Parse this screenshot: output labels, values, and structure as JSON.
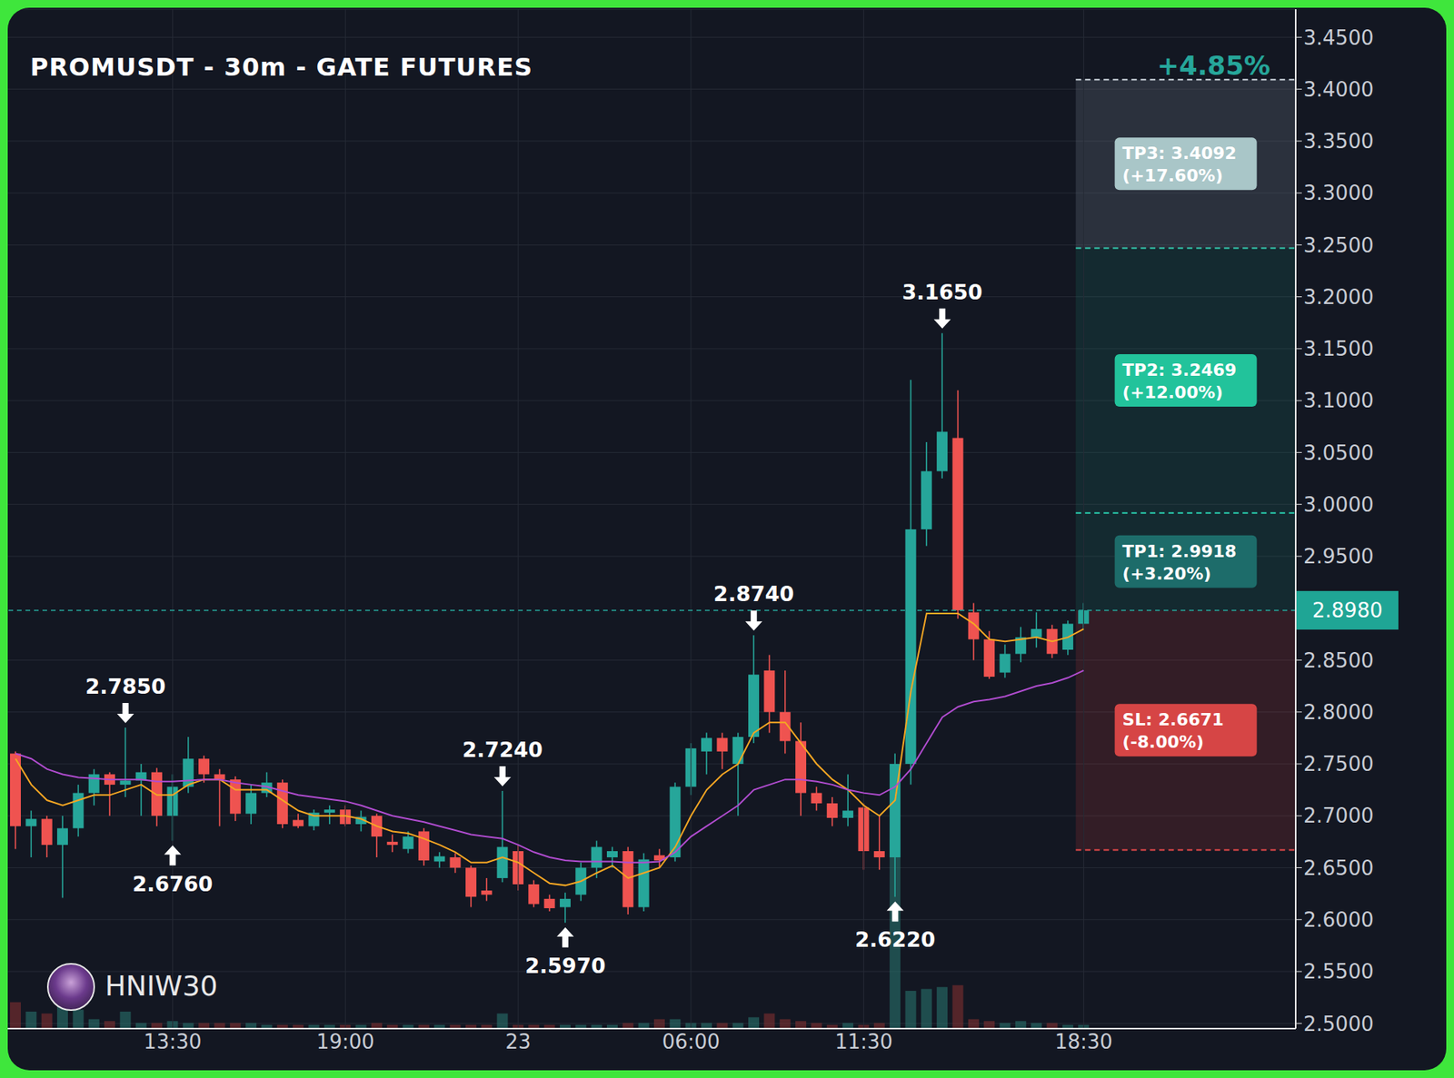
{
  "chart_data": {
    "type": "candlestick",
    "title": "PROMUSDT - 30m - GATE FUTURES",
    "watermark": "HNIW30",
    "categories": [
      null,
      null,
      null,
      null,
      null,
      null,
      null,
      null,
      null,
      null,
      "13:30",
      null,
      null,
      null,
      null,
      null,
      null,
      null,
      null,
      null,
      null,
      "19:00",
      null,
      null,
      null,
      null,
      null,
      null,
      null,
      null,
      null,
      null,
      "23",
      null,
      null,
      null,
      null,
      null,
      null,
      null,
      null,
      null,
      null,
      "06:00",
      null,
      null,
      null,
      null,
      null,
      null,
      null,
      null,
      null,
      null,
      "11:30",
      null,
      null,
      null,
      null,
      null,
      null,
      null,
      null,
      null,
      null,
      null,
      null,
      null,
      "18:30",
      null,
      null,
      null,
      null,
      null,
      null,
      null,
      null,
      null,
      null,
      null,
      null,
      null
    ],
    "open": [
      2.76,
      2.69,
      2.697,
      2.672,
      2.688,
      2.722,
      2.74,
      2.73,
      2.734,
      2.742,
      2.7,
      2.728,
      2.755,
      2.74,
      2.735,
      2.702,
      2.722,
      2.732,
      2.696,
      2.69,
      2.703,
      2.706,
      2.692,
      2.7,
      2.675,
      2.668,
      2.685,
      2.656,
      2.66,
      2.65,
      2.628,
      2.64,
      2.666,
      2.634,
      2.62,
      2.612,
      2.624,
      2.65,
      2.66,
      2.666,
      2.612,
      2.662,
      2.66,
      2.728,
      2.762,
      2.775,
      2.75,
      2.776,
      2.84,
      2.8,
      2.772,
      2.722,
      2.712,
      2.698,
      2.708,
      2.666,
      2.66,
      2.75,
      2.976,
      3.032,
      3.064,
      2.896,
      2.87,
      2.838,
      2.856,
      2.872,
      2.88,
      2.86,
      2.885,
      null,
      null,
      null,
      null,
      null,
      null,
      null,
      null,
      null,
      null,
      null,
      null,
      null
    ],
    "high": [
      2.762,
      2.705,
      2.7,
      2.7,
      2.73,
      2.745,
      2.742,
      2.785,
      2.75,
      2.746,
      2.74,
      2.776,
      2.758,
      2.745,
      2.738,
      2.73,
      2.742,
      2.735,
      2.702,
      2.706,
      2.71,
      2.71,
      2.705,
      2.702,
      2.682,
      2.685,
      2.688,
      2.665,
      2.664,
      2.652,
      2.64,
      2.724,
      2.672,
      2.638,
      2.624,
      2.626,
      2.655,
      2.676,
      2.67,
      2.67,
      2.664,
      2.668,
      2.732,
      2.77,
      2.78,
      2.78,
      2.78,
      2.874,
      2.855,
      2.84,
      2.79,
      2.728,
      2.718,
      2.74,
      2.712,
      2.7,
      2.76,
      3.12,
      3.06,
      3.165,
      3.11,
      2.905,
      2.878,
      2.865,
      2.882,
      2.896,
      2.884,
      2.888,
      2.905,
      null,
      null,
      null,
      null,
      null,
      null,
      null,
      null,
      null,
      null,
      null,
      null,
      null
    ],
    "low": [
      2.668,
      2.66,
      2.66,
      2.621,
      2.68,
      2.71,
      2.7,
      2.718,
      2.7,
      2.69,
      2.676,
      2.722,
      2.732,
      2.69,
      2.695,
      2.692,
      2.718,
      2.688,
      2.688,
      2.686,
      2.692,
      2.69,
      2.685,
      2.66,
      2.665,
      2.664,
      2.652,
      2.65,
      2.645,
      2.612,
      2.618,
      2.636,
      2.628,
      2.612,
      2.608,
      2.597,
      2.618,
      2.64,
      2.65,
      2.605,
      2.608,
      2.65,
      2.656,
      2.72,
      2.74,
      2.745,
      2.7,
      2.77,
      2.78,
      2.76,
      2.7,
      2.705,
      2.69,
      2.69,
      2.648,
      2.648,
      2.622,
      2.73,
      2.96,
      3.025,
      2.89,
      2.85,
      2.832,
      2.833,
      2.848,
      2.862,
      2.852,
      2.855,
      2.88,
      null,
      null,
      null,
      null,
      null,
      null,
      null,
      null,
      null,
      null,
      null,
      null,
      null
    ],
    "close": [
      2.69,
      2.697,
      2.672,
      2.688,
      2.722,
      2.74,
      2.73,
      2.734,
      2.742,
      2.7,
      2.728,
      2.755,
      2.74,
      2.735,
      2.702,
      2.722,
      2.732,
      2.692,
      2.69,
      2.703,
      2.706,
      2.692,
      2.699,
      2.68,
      2.672,
      2.68,
      2.657,
      2.661,
      2.65,
      2.622,
      2.624,
      2.67,
      2.634,
      2.615,
      2.611,
      2.62,
      2.65,
      2.67,
      2.666,
      2.612,
      2.658,
      2.657,
      2.728,
      2.765,
      2.775,
      2.762,
      2.776,
      2.836,
      2.8,
      2.772,
      2.722,
      2.712,
      2.698,
      2.705,
      2.666,
      2.66,
      2.75,
      2.976,
      3.032,
      3.07,
      2.898,
      2.87,
      2.834,
      2.856,
      2.872,
      2.88,
      2.856,
      2.885,
      2.898,
      null,
      null,
      null,
      null,
      null,
      null,
      null,
      null,
      null,
      null,
      null,
      null,
      null
    ],
    "volume": [
      14,
      9,
      8,
      14,
      10,
      5,
      4,
      9,
      3,
      3,
      4,
      3,
      3,
      3,
      3,
      3,
      2,
      2,
      2,
      2,
      2,
      2,
      2,
      3,
      2,
      2,
      2,
      2,
      2,
      2,
      2,
      8,
      2,
      2,
      2,
      2,
      2,
      2,
      2,
      3,
      3,
      5,
      5,
      3,
      3,
      3,
      3,
      6,
      8,
      5,
      4,
      3,
      2,
      3,
      2,
      3,
      100,
      20,
      21,
      22,
      23,
      5,
      4,
      3,
      4,
      3,
      3,
      2,
      2,
      null,
      null,
      null,
      null,
      null,
      null,
      null,
      null,
      null,
      null,
      null,
      null,
      null
    ],
    "volume_lim": [
      0,
      540
    ],
    "series": [
      {
        "type": "line",
        "color": "#f5a623",
        "values": [
          2.755,
          2.73,
          2.715,
          2.71,
          2.715,
          2.72,
          2.72,
          2.725,
          2.73,
          2.72,
          2.72,
          2.73,
          2.735,
          2.735,
          2.725,
          2.725,
          2.725,
          2.715,
          2.705,
          2.7,
          2.7,
          2.7,
          2.697,
          2.69,
          2.685,
          2.683,
          2.678,
          2.672,
          2.665,
          2.655,
          2.655,
          2.66,
          2.655,
          2.645,
          2.635,
          2.633,
          2.637,
          2.645,
          2.652,
          2.64,
          2.645,
          2.65,
          2.67,
          2.7,
          2.725,
          2.74,
          2.75,
          2.78,
          2.79,
          2.79,
          2.77,
          2.75,
          2.735,
          2.725,
          2.71,
          2.7,
          2.715,
          2.82,
          2.895,
          2.895,
          2.895,
          2.885,
          2.87,
          2.868,
          2.87,
          2.872,
          2.868,
          2.872,
          2.88,
          null,
          null,
          null,
          null,
          null,
          null,
          null,
          null,
          null,
          null,
          null,
          null,
          null
        ]
      },
      {
        "type": "line",
        "color": "#b04ccf",
        "values": [
          2.76,
          2.755,
          2.745,
          2.74,
          2.737,
          2.736,
          2.735,
          2.735,
          2.735,
          2.733,
          2.733,
          2.734,
          2.735,
          2.735,
          2.732,
          2.73,
          2.728,
          2.724,
          2.72,
          2.718,
          2.716,
          2.714,
          2.71,
          2.705,
          2.7,
          2.697,
          2.694,
          2.69,
          2.686,
          2.682,
          2.68,
          2.678,
          2.672,
          2.665,
          2.66,
          2.657,
          2.656,
          2.656,
          2.656,
          2.655,
          2.655,
          2.656,
          2.665,
          2.68,
          2.69,
          2.7,
          2.71,
          2.725,
          2.73,
          2.735,
          2.735,
          2.733,
          2.73,
          2.725,
          2.722,
          2.72,
          2.728,
          2.745,
          2.77,
          2.795,
          2.805,
          2.81,
          2.812,
          2.815,
          2.82,
          2.825,
          2.828,
          2.833,
          2.84,
          null,
          null,
          null,
          null,
          null,
          null,
          null,
          null,
          null,
          null,
          null,
          null,
          null
        ]
      }
    ],
    "ylim": [
      2.495,
      3.477
    ],
    "yticks": [
      {
        "value": 2.5,
        "label": "2.5000"
      },
      {
        "value": 2.55,
        "label": "2.5500"
      },
      {
        "value": 2.6,
        "label": "2.6000"
      },
      {
        "value": 2.65,
        "label": "2.6500"
      },
      {
        "value": 2.7,
        "label": "2.7000"
      },
      {
        "value": 2.75,
        "label": "2.7500"
      },
      {
        "value": 2.8,
        "label": "2.8000"
      },
      {
        "value": 2.85,
        "label": "2.8500"
      },
      {
        "value": 2.95,
        "label": "2.9500"
      },
      {
        "value": 3.0,
        "label": "3.0000"
      },
      {
        "value": 3.05,
        "label": "3.0500"
      },
      {
        "value": 3.1,
        "label": "3.1000"
      },
      {
        "value": 3.15,
        "label": "3.1500"
      },
      {
        "value": 3.2,
        "label": "3.2000"
      },
      {
        "value": 3.25,
        "label": "3.2500"
      },
      {
        "value": 3.3,
        "label": "3.3000"
      },
      {
        "value": 3.35,
        "label": "3.3500"
      },
      {
        "value": 3.4,
        "label": "3.4000"
      },
      {
        "value": 3.45,
        "label": "3.4500"
      }
    ],
    "grid": true,
    "annotations": [
      {
        "x": 7,
        "y": 2.785,
        "label": "2.7850",
        "marker": "arrow_down"
      },
      {
        "x": 10,
        "y": 2.676,
        "label": "2.6760",
        "marker": "arrow_up"
      },
      {
        "x": 31,
        "y": 2.724,
        "label": "2.7240",
        "marker": "arrow_down"
      },
      {
        "x": 35,
        "y": 2.597,
        "label": "2.5970",
        "marker": "arrow_up"
      },
      {
        "x": 47,
        "y": 2.874,
        "label": "2.8740",
        "marker": "arrow_down"
      },
      {
        "x": 56,
        "y": 2.622,
        "label": "2.6220",
        "marker": "arrow_up"
      },
      {
        "x": 59,
        "y": 3.165,
        "label": "3.1650",
        "marker": "arrow_down"
      }
    ],
    "trade": {
      "entry": {
        "value": 2.898,
        "label": "2.8980"
      },
      "targets": [
        {
          "value": 2.9918,
          "label": "TP1: 2.9918",
          "sublabel": "(+3.20%)"
        },
        {
          "value": 3.2469,
          "label": "TP2: 3.2469",
          "sublabel": "(+12.00%)"
        },
        {
          "value": 3.4092,
          "label": "TP3: 3.4092",
          "sublabel": "(+17.60%)"
        }
      ],
      "stop": {
        "value": 2.6671,
        "label": "SL: 2.6671",
        "sublabel": "(-8.00%)"
      },
      "pnl_label": "+4.85%"
    }
  }
}
